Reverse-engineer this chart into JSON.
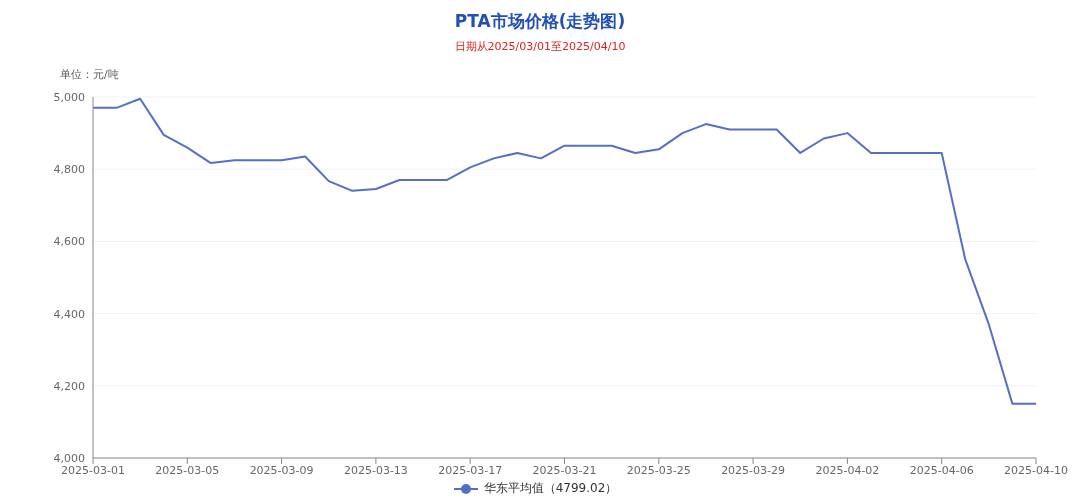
{
  "chart_data": {
    "type": "line",
    "title": "PTA市场价格(走势图)",
    "subtitle": "日期从2025/03/01至2025/04/10",
    "ylabel": "单位：元/吨",
    "x": [
      "2025-03-01",
      "2025-03-02",
      "2025-03-03",
      "2025-03-04",
      "2025-03-05",
      "2025-03-06",
      "2025-03-07",
      "2025-03-08",
      "2025-03-09",
      "2025-03-10",
      "2025-03-11",
      "2025-03-12",
      "2025-03-13",
      "2025-03-14",
      "2025-03-15",
      "2025-03-16",
      "2025-03-17",
      "2025-03-18",
      "2025-03-19",
      "2025-03-20",
      "2025-03-21",
      "2025-03-22",
      "2025-03-23",
      "2025-03-24",
      "2025-03-25",
      "2025-03-26",
      "2025-03-27",
      "2025-03-28",
      "2025-03-29",
      "2025-03-30",
      "2025-03-31",
      "2025-04-01",
      "2025-04-02",
      "2025-04-03",
      "2025-04-04",
      "2025-04-05",
      "2025-04-06",
      "2025-04-07",
      "2025-04-08",
      "2025-04-09",
      "2025-04-10"
    ],
    "series": [
      {
        "name": "华东平均值（4799.02）",
        "color": "#5470c6",
        "values": [
          4970,
          4970,
          4995,
          4895,
          4860,
          4817,
          4825,
          4825,
          4825,
          4835,
          4767,
          4740,
          4745,
          4770,
          4770,
          4770,
          4805,
          4830,
          4845,
          4830,
          4865,
          4865,
          4865,
          4845,
          4855,
          4900,
          4925,
          4910,
          4910,
          4910,
          4845,
          4885,
          4900,
          4845,
          4845,
          4845,
          4845,
          4550,
          4370,
          4150,
          4150
        ]
      }
    ],
    "xlim": [
      "2025-03-01",
      "2025-04-10"
    ],
    "xticks": [
      "2025-03-01",
      "2025-03-05",
      "2025-03-09",
      "2025-03-13",
      "2025-03-17",
      "2025-03-21",
      "2025-03-25",
      "2025-03-29",
      "2025-04-02",
      "2025-04-06",
      "2025-04-10"
    ],
    "ylim": [
      4000,
      5000
    ],
    "yticks": [
      {
        "value": 4000,
        "label": "4,000"
      },
      {
        "value": 4200,
        "label": "4,200"
      },
      {
        "value": 4400,
        "label": "4,400"
      },
      {
        "value": 4600,
        "label": "4,600"
      },
      {
        "value": 4800,
        "label": "4,800"
      },
      {
        "value": 5000,
        "label": "5,000"
      }
    ],
    "grid": "y",
    "legend": "bottom",
    "marker": "none",
    "line_style": "solid"
  }
}
